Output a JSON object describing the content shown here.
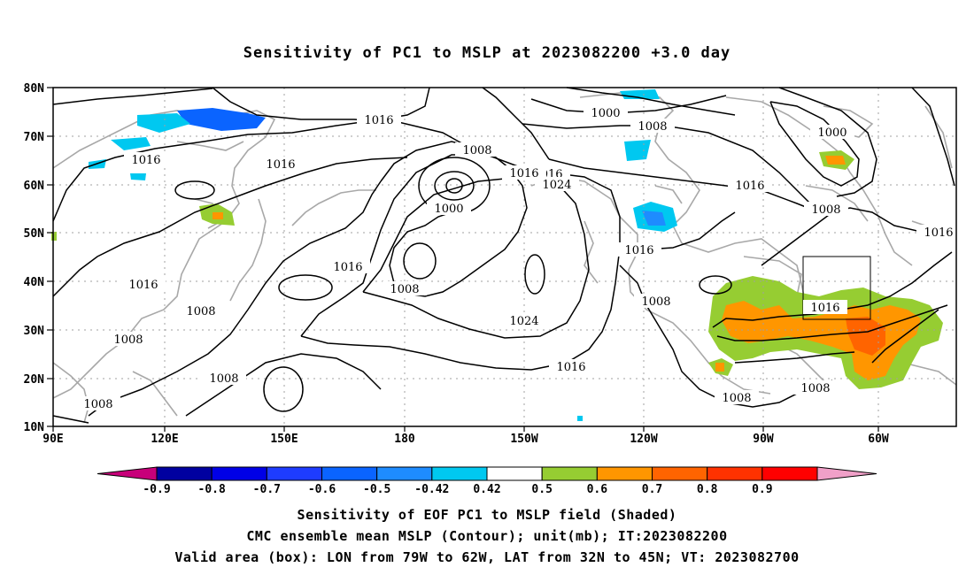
{
  "title": "Sensitivity of PC1 to MSLP at 2023082200 +3.0 day",
  "lat_labels": [
    "80N",
    "70N",
    "60N",
    "50N",
    "40N",
    "30N",
    "20N",
    "10N"
  ],
  "lon_labels": [
    "90E",
    "120E",
    "150E",
    "180",
    "150W",
    "120W",
    "90W",
    "60W"
  ],
  "contour_labels": [
    "1016",
    "1016",
    "1016",
    "1016",
    "1000",
    "1008",
    "1016",
    "1024",
    "1000",
    "1016",
    "1000",
    "1008",
    "1008",
    "1016",
    "1016",
    "1016",
    "1008",
    "1016",
    "1008",
    "1024",
    "1008",
    "1016",
    "1008",
    "1008",
    "1008",
    "1008",
    "1016",
    "1008",
    "1008"
  ],
  "colorbar": {
    "labels": [
      "-0.9",
      "-0.8",
      "-0.7",
      "-0.6",
      "-0.5",
      "-0.42",
      "0.42",
      "0.5",
      "0.6",
      "0.7",
      "0.8",
      "0.9"
    ],
    "colors": [
      "#c8007a",
      "#0000a0",
      "#0000e6",
      "#1e3cff",
      "#0a64ff",
      "#1e8cff",
      "#00c8f0",
      "#ffffff",
      "#96cd32",
      "#ff9600",
      "#ff6400",
      "#ff3200",
      "#ff0000",
      "#f0a0c8"
    ]
  },
  "caption": {
    "line1": "Sensitivity of EOF PC1 to MSLP field (Shaded)",
    "line2": "CMC ensemble mean MSLP (Contour); unit(mb); IT:2023082200",
    "line3": "Valid area (box): LON from 79W to 62W, LAT from 32N to 45N; VT: 2023082700"
  }
}
